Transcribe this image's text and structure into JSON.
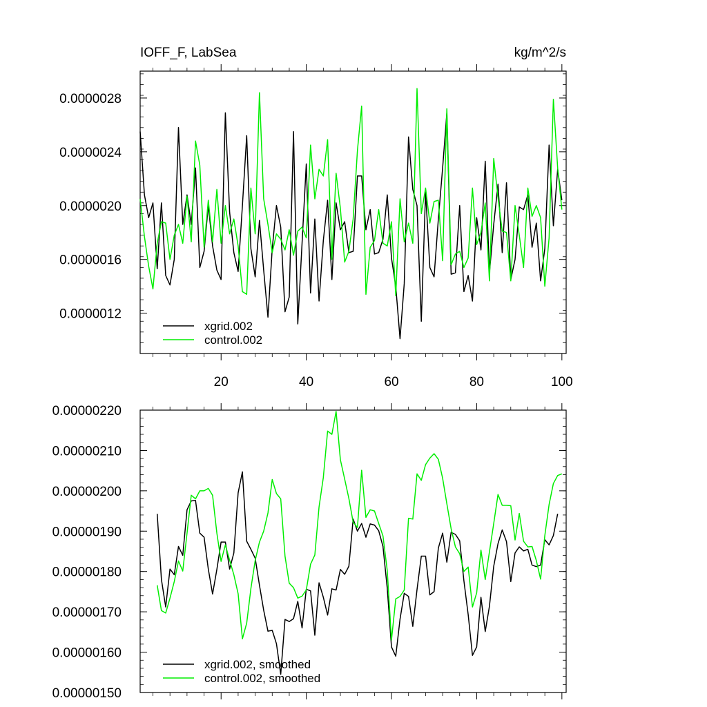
{
  "chart_data": [
    {
      "type": "line",
      "title": "IOFF_F, LabSea",
      "units": "kg/m^2/s",
      "xlim": [
        1,
        101
      ],
      "ylim": [
        9e-07,
        3e-06
      ],
      "xticks": [
        20,
        40,
        60,
        80,
        100
      ],
      "yticks": [
        1.2e-06,
        1.6e-06,
        2e-06,
        2.4e-06,
        2.8e-06
      ],
      "ytick_labels": [
        "0.0000012",
        "0.0000016",
        "0.0000020",
        "0.0000024",
        "0.0000028"
      ],
      "xtick_labels": [
        "20",
        "40",
        "60",
        "80",
        "100"
      ],
      "series": [
        {
          "name": "xgrid.002",
          "color": "#000000",
          "y": [
            2.55,
            2.08,
            1.91,
            2.02,
            1.53,
            2.02,
            1.48,
            1.41,
            1.6,
            2.58,
            1.86,
            2.08,
            1.86,
            2.28,
            1.54,
            1.66,
            2.0,
            1.7,
            1.52,
            1.45,
            2.69,
            1.95,
            1.65,
            1.51,
            2.0,
            2.52,
            1.68,
            1.47,
            1.89,
            1.52,
            1.17,
            1.68,
            2.0,
            1.84,
            1.21,
            1.32,
            2.55,
            1.12,
            1.72,
            2.31,
            1.35,
            1.9,
            1.29,
            1.74,
            2.04,
            1.45,
            2.02,
            1.82,
            1.88,
            1.65,
            1.66,
            2.22,
            2.22,
            1.82,
            1.97,
            1.64,
            1.65,
            1.75,
            2.08,
            1.61,
            1.4,
            1.01,
            1.42,
            2.51,
            2.12,
            2.0,
            1.14,
            2.1,
            1.54,
            1.47,
            1.9,
            2.28,
            2.69,
            1.49,
            1.5,
            2.0,
            1.36,
            1.48,
            1.29,
            1.91,
            1.67,
            2.33,
            1.5,
            1.86,
            2.16,
            1.65,
            2.17,
            1.45,
            1.6,
            1.99,
            1.97,
            2.08,
            1.69,
            1.87,
            1.44,
            1.68,
            2.45,
            1.85,
            2.27,
            2.04
          ]
        },
        {
          "name": "control.002",
          "color": "#00ee00",
          "y": [
            2.05,
            1.77,
            1.55,
            1.38,
            1.72,
            1.88,
            1.87,
            1.6,
            1.78,
            1.86,
            1.72,
            2.07,
            1.73,
            2.48,
            2.3,
            1.69,
            2.04,
            1.73,
            2.12,
            1.72,
            2.0,
            1.79,
            1.9,
            1.7,
            1.36,
            1.34,
            2.13,
            1.79,
            2.84,
            2.05,
            1.86,
            1.65,
            1.79,
            1.75,
            1.67,
            1.82,
            1.63,
            1.81,
            1.84,
            1.76,
            2.45,
            2.05,
            2.27,
            2.22,
            2.49,
            1.6,
            2.24,
            1.98,
            1.58,
            1.66,
            1.9,
            2.41,
            2.74,
            1.34,
            1.69,
            1.74,
            1.97,
            1.72,
            1.7,
            1.88,
            1.33,
            2.05,
            1.73,
            1.87,
            1.72,
            2.87,
            1.94,
            2.13,
            1.87,
            2.03,
            2.04,
            1.59,
            2.72,
            1.56,
            1.64,
            1.66,
            1.54,
            1.61,
            2.13,
            1.71,
            1.8,
            2.02,
            1.44,
            2.35,
            2.06,
            1.81,
            1.8,
            1.44,
            2.0,
            1.78,
            1.54,
            2.13,
            1.92,
            2.0,
            1.91,
            1.4,
            1.76,
            2.79,
            2.28,
            1.97
          ]
        }
      ],
      "legend": [
        "xgrid.002",
        "control.002"
      ],
      "legend_position": "bottom-left"
    },
    {
      "type": "line",
      "xlim": [
        1,
        101
      ],
      "ylim": [
        1.5e-06,
        2.2e-06
      ],
      "xticks": [
        20,
        40,
        60,
        80,
        100
      ],
      "yticks": [
        1.5e-06,
        1.6e-06,
        1.7e-06,
        1.8e-06,
        1.9e-06,
        2e-06,
        2.1e-06,
        2.2e-06
      ],
      "ytick_labels": [
        "0.00000150",
        "0.00000160",
        "0.00000170",
        "0.00000180",
        "0.00000190",
        "0.00000200",
        "0.00000210",
        "0.00000220"
      ],
      "series": [
        {
          "name": "xgrid.002, smoothed",
          "color": "#000000",
          "x_start": 5,
          "y": [
            1.943,
            1.78,
            1.712,
            1.806,
            1.792,
            1.862,
            1.84,
            1.953,
            1.975,
            1.976,
            1.895,
            1.885,
            1.806,
            1.744,
            1.805,
            1.873,
            1.873,
            1.806,
            1.846,
            1.995,
            2.047,
            1.875,
            1.855,
            1.833,
            1.766,
            1.704,
            1.652,
            1.654,
            1.621,
            1.545,
            1.681,
            1.676,
            1.683,
            1.726,
            1.66,
            1.756,
            1.752,
            1.642,
            1.772,
            1.736,
            1.692,
            1.757,
            1.754,
            1.805,
            1.793,
            1.813,
            1.93,
            1.9,
            1.919,
            1.885,
            1.918,
            1.915,
            1.901,
            1.862,
            1.758,
            1.613,
            1.59,
            1.682,
            1.746,
            1.738,
            1.664,
            1.755,
            1.838,
            1.838,
            1.742,
            1.75,
            1.858,
            1.895,
            1.823,
            1.897,
            1.892,
            1.876,
            1.777,
            1.693,
            1.592,
            1.613,
            1.736,
            1.651,
            1.714,
            1.813,
            1.869,
            1.903,
            1.874,
            1.775,
            1.846,
            1.861,
            1.851,
            1.855,
            1.816,
            1.812,
            1.816,
            1.879,
            1.866,
            1.889,
            1.943
          ]
        },
        {
          "name": "control.002, smoothed",
          "color": "#00ee00",
          "x_start": 5,
          "y": [
            1.766,
            1.703,
            1.697,
            1.734,
            1.775,
            1.826,
            1.801,
            1.895,
            1.989,
            1.98,
            2.0,
            2.0,
            2.006,
            1.989,
            1.895,
            1.825,
            1.866,
            1.828,
            1.792,
            1.745,
            1.633,
            1.672,
            1.758,
            1.827,
            1.873,
            1.9,
            1.945,
            2.028,
            1.993,
            1.98,
            1.838,
            1.771,
            1.76,
            1.734,
            1.739,
            1.754,
            1.818,
            1.841,
            1.96,
            2.033,
            2.148,
            2.14,
            2.197,
            2.077,
            2.029,
            1.981,
            1.922,
            1.909,
            2.051,
            1.934,
            1.953,
            1.95,
            1.919,
            1.888,
            1.802,
            1.63,
            1.732,
            1.738,
            1.754,
            1.932,
            1.93,
            2.042,
            2.026,
            2.065,
            2.081,
            2.092,
            2.078,
            2.031,
            1.968,
            1.906,
            1.861,
            1.844,
            1.8,
            1.811,
            1.712,
            1.747,
            1.853,
            1.78,
            1.849,
            1.919,
            1.991,
            1.964,
            1.964,
            1.963,
            1.878,
            1.944,
            1.875,
            1.861,
            1.862,
            1.827,
            1.781,
            1.889,
            1.966,
            2.018,
            2.038,
            2.042
          ]
        }
      ],
      "legend": [
        "xgrid.002, smoothed",
        "control.002, smoothed"
      ],
      "legend_position": "bottom-left"
    }
  ]
}
